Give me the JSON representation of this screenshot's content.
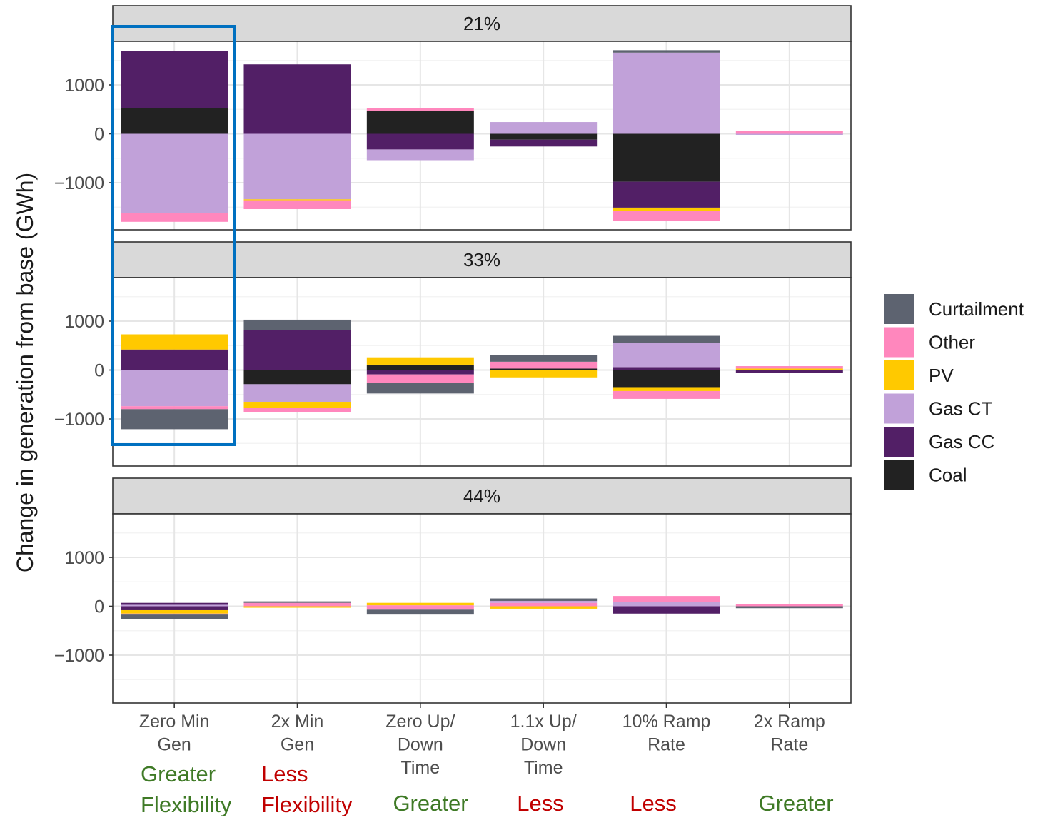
{
  "chart_data": {
    "type": "bar",
    "stacked": true,
    "diverging": true,
    "ylabel": "Change in generation from base (GWh)",
    "xlabel": "",
    "ylim": [
      -1950,
      1900
    ],
    "yticks": [
      -1000,
      0,
      1000
    ],
    "grid": true,
    "legend_position": "right",
    "categories": [
      [
        "Zero Min",
        "Gen"
      ],
      [
        "2x Min",
        "Gen"
      ],
      [
        "Zero Up/",
        "Down",
        "Time"
      ],
      [
        "1.1x Up/",
        "Down",
        "Time"
      ],
      [
        "10% Ramp",
        "Rate"
      ],
      [
        "2x Ramp",
        "Rate"
      ]
    ],
    "legend": [
      {
        "name": "Curtailment",
        "color": "#5d6370"
      },
      {
        "name": "Other",
        "color": "#ff87bd"
      },
      {
        "name": "PV",
        "color": "#ffc900"
      },
      {
        "name": "Gas CT",
        "color": "#c1a1d9"
      },
      {
        "name": "Gas CC",
        "color": "#521f66"
      },
      {
        "name": "Coal",
        "color": "#222222"
      }
    ],
    "panels": [
      {
        "title": "21%",
        "bars": [
          [
            [
              "Coal",
              0,
              520
            ],
            [
              "Gas CC",
              520,
              1700
            ],
            [
              "Gas CT",
              0,
              -1620
            ],
            [
              "Other",
              -1620,
              -1800
            ]
          ],
          [
            [
              "Gas CC",
              0,
              1420
            ],
            [
              "Gas CT",
              0,
              -1340
            ],
            [
              "PV",
              -1340,
              -1360
            ],
            [
              "Other",
              -1360,
              -1540
            ]
          ],
          [
            [
              "Coal",
              0,
              460
            ],
            [
              "Other",
              460,
              520
            ],
            [
              "Gas CC",
              0,
              -320
            ],
            [
              "Gas CT",
              -320,
              -540
            ]
          ],
          [
            [
              "Gas CT",
              0,
              240
            ],
            [
              "Coal",
              0,
              -120
            ],
            [
              "Gas CC",
              -120,
              -260
            ]
          ],
          [
            [
              "Gas CT",
              0,
              1660
            ],
            [
              "Curtailment",
              1660,
              1710
            ],
            [
              "Coal",
              0,
              -980
            ],
            [
              "Gas CC",
              -980,
              -1510
            ],
            [
              "PV",
              -1510,
              -1570
            ],
            [
              "Other",
              -1570,
              -1780
            ]
          ],
          [
            [
              "Other",
              0,
              60
            ],
            [
              "Gas CT",
              0,
              -20
            ]
          ]
        ]
      },
      {
        "title": "33%",
        "bars": [
          [
            [
              "Gas CC",
              0,
              420
            ],
            [
              "PV",
              420,
              730
            ],
            [
              "Gas CT",
              0,
              -740
            ],
            [
              "Other",
              -740,
              -800
            ],
            [
              "Curtailment",
              -800,
              -1210
            ]
          ],
          [
            [
              "Gas CC",
              0,
              820
            ],
            [
              "Curtailment",
              820,
              1030
            ],
            [
              "Coal",
              0,
              -290
            ],
            [
              "Gas CT",
              -290,
              -650
            ],
            [
              "PV",
              -650,
              -770
            ],
            [
              "Other",
              -770,
              -860
            ]
          ],
          [
            [
              "Coal",
              0,
              110
            ],
            [
              "PV",
              110,
              260
            ],
            [
              "Gas CC",
              0,
              -90
            ],
            [
              "Other",
              -90,
              -260
            ],
            [
              "Curtailment",
              -260,
              -480
            ]
          ],
          [
            [
              "Coal",
              0,
              30
            ],
            [
              "Other",
              30,
              170
            ],
            [
              "Curtailment",
              170,
              300
            ],
            [
              "PV",
              0,
              -150
            ]
          ],
          [
            [
              "Gas CC",
              0,
              60
            ],
            [
              "Gas CT",
              60,
              560
            ],
            [
              "Curtailment",
              560,
              700
            ],
            [
              "Coal",
              0,
              -350
            ],
            [
              "PV",
              -350,
              -430
            ],
            [
              "Other",
              -430,
              -590
            ]
          ],
          [
            [
              "PV",
              0,
              30
            ],
            [
              "Other",
              30,
              80
            ],
            [
              "Gas CC",
              0,
              -60
            ]
          ]
        ]
      },
      {
        "title": "44%",
        "bars": [
          [
            [
              "Gas CT",
              0,
              30
            ],
            [
              "Gas CC",
              30,
              70
            ],
            [
              "Gas CC",
              0,
              -80
            ],
            [
              "PV",
              -80,
              -150
            ],
            [
              "Other",
              -150,
              -170
            ],
            [
              "Curtailment",
              -170,
              -270
            ]
          ],
          [
            [
              "Other",
              0,
              70
            ],
            [
              "Curtailment",
              70,
              100
            ],
            [
              "PV",
              0,
              -30
            ]
          ],
          [
            [
              "Other",
              0,
              20
            ],
            [
              "PV",
              20,
              70
            ],
            [
              "Other",
              0,
              -70
            ],
            [
              "Curtailment",
              -70,
              -170
            ]
          ],
          [
            [
              "Other",
              0,
              70
            ],
            [
              "Gas CT",
              70,
              110
            ],
            [
              "Curtailment",
              110,
              160
            ],
            [
              "PV",
              0,
              -50
            ]
          ],
          [
            [
              "Gas CT",
              0,
              90
            ],
            [
              "Other",
              90,
              210
            ],
            [
              "Gas CC",
              0,
              -150
            ]
          ],
          [
            [
              "Other",
              0,
              40
            ],
            [
              "Curtailment",
              0,
              -40
            ]
          ]
        ]
      }
    ],
    "annotations": [
      {
        "label": [
          "Greater",
          "Flexibility"
        ],
        "color": "#3f7a26"
      },
      {
        "label": [
          "Less",
          "Flexibility"
        ],
        "color": "#c00000"
      },
      {
        "label": [
          "Greater"
        ],
        "color": "#3f7a26"
      },
      {
        "label": [
          "Less"
        ],
        "color": "#c00000"
      },
      {
        "label": [
          "Less"
        ],
        "color": "#c00000"
      },
      {
        "label": [
          "Greater"
        ],
        "color": "#3f7a26"
      }
    ],
    "highlight": {
      "category_index": 0,
      "color": "#0070c0"
    }
  }
}
